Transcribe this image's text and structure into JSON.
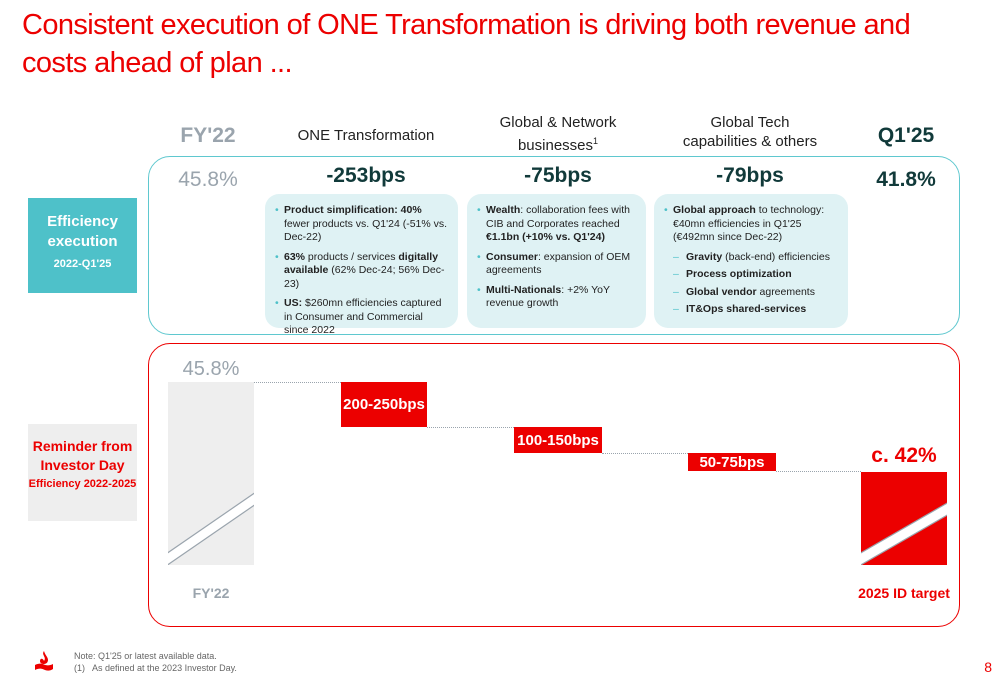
{
  "title": "Consistent execution of ONE Transformation is driving both revenue and costs ahead of plan ...",
  "columns": {
    "fy22": "FY'22",
    "one": "ONE Transformation",
    "global_network": "Global & Network businesses",
    "global_network_sup": "1",
    "global_tech": "Global Tech capabilities & others",
    "q125": "Q1'25"
  },
  "efficiency": {
    "label_main": "Efficiency execution",
    "label_sub": "2022-Q1'25",
    "fy22_value": "45.8%",
    "one_bps": "-253bps",
    "gn_bps": "-75bps",
    "gt_bps": "-79bps",
    "q125_value": "41.8%"
  },
  "cards": {
    "one": [
      {
        "b": "Product simplification: 40%",
        "t": " fewer products vs. Q1'24 (-51% vs. Dec-22)"
      },
      {
        "b": "63%",
        "t": " products / services ",
        "b2": "digitally available",
        "t2": " (62% Dec-24; 56% Dec-23)"
      },
      {
        "b": "US:",
        "t": " $260mn efficiencies captured in Consumer and Commercial since 2022"
      }
    ],
    "gn": [
      {
        "b": "Wealth",
        "t": ": collaboration fees with CIB and Corporates reached ",
        "b2": "€1.1bn (+10% vs. Q1'24)"
      },
      {
        "b": "Consumer",
        "t": ": expansion of OEM agreements"
      },
      {
        "b": "Multi-Nationals",
        "t": ": +2% YoY revenue growth"
      }
    ],
    "gt_intro_b": "Global approach",
    "gt_intro_t": " to technology: €40mn efficiencies in Q1'25 (€492mn since Dec-22)",
    "gt_subs": [
      {
        "b": "Gravity",
        "t": " (back-end) efficiencies"
      },
      {
        "b": "Process optimization",
        "t": ""
      },
      {
        "b": "Global vendor",
        "t": " agreements"
      },
      {
        "b": "IT&Ops shared-services",
        "t": ""
      }
    ]
  },
  "reminder": {
    "label_main": "Reminder from Investor Day",
    "label_sub": "Efficiency 2022-2025",
    "start_value": "45.8%",
    "steps": [
      "200-250bps",
      "100-150bps",
      "50-75bps"
    ],
    "target_value": "c. 42%",
    "start_label": "FY'22",
    "target_label": "2025 ID target"
  },
  "footer": {
    "note": "Note: Q1'25 or latest available data.",
    "footnote": "(1)   As defined at the 2023 Investor Day.",
    "page": "8"
  },
  "colors": {
    "brand_red": "#ec0000",
    "teal": "#4ec1c9",
    "card_bg": "#dff2f4",
    "grey": "#9aa4ad"
  }
}
